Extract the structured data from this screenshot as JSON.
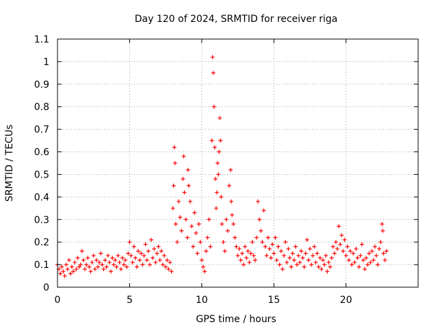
{
  "chart_data": {
    "type": "scatter",
    "title": "Day 120 of 2024, SRMTID for receiver riga",
    "xlabel": "GPS time / hours",
    "ylabel": "SRMTID / TECUs",
    "xlim": [
      0,
      25
    ],
    "ylim": [
      0,
      1.1
    ],
    "xticks": [
      0,
      5,
      10,
      15,
      20
    ],
    "xtick_labels": [
      "0",
      "5",
      "10",
      "15",
      "20"
    ],
    "yticks": [
      0,
      0.1,
      0.2,
      0.3,
      0.4,
      0.5,
      0.6,
      0.7,
      0.8,
      0.9,
      1.0,
      1.1
    ],
    "ytick_labels": [
      "0",
      "0.1",
      "0.2",
      "0.3",
      "0.4",
      "0.5",
      "0.6",
      "0.7",
      "0.8",
      "0.9",
      "1",
      "1.1"
    ],
    "grid": true,
    "marker": "+",
    "color": "#ff0000",
    "series": [
      {
        "name": "SRMTID",
        "points": [
          [
            0.0,
            0.1
          ],
          [
            0.1,
            0.08
          ],
          [
            0.2,
            0.06
          ],
          [
            0.3,
            0.09
          ],
          [
            0.4,
            0.07
          ],
          [
            0.5,
            0.05
          ],
          [
            0.6,
            0.1
          ],
          [
            0.7,
            0.08
          ],
          [
            0.8,
            0.12
          ],
          [
            0.9,
            0.06
          ],
          [
            1.0,
            0.09
          ],
          [
            1.1,
            0.07
          ],
          [
            1.2,
            0.11
          ],
          [
            1.3,
            0.08
          ],
          [
            1.4,
            0.13
          ],
          [
            1.5,
            0.09
          ],
          [
            1.6,
            0.1
          ],
          [
            1.7,
            0.16
          ],
          [
            1.8,
            0.12
          ],
          [
            1.9,
            0.08
          ],
          [
            2.0,
            0.1
          ],
          [
            2.1,
            0.13
          ],
          [
            2.2,
            0.09
          ],
          [
            2.3,
            0.07
          ],
          [
            2.4,
            0.11
          ],
          [
            2.5,
            0.14
          ],
          [
            2.6,
            0.08
          ],
          [
            2.7,
            0.12
          ],
          [
            2.8,
            0.09
          ],
          [
            2.9,
            0.11
          ],
          [
            3.0,
            0.15
          ],
          [
            3.1,
            0.1
          ],
          [
            3.2,
            0.08
          ],
          [
            3.3,
            0.12
          ],
          [
            3.4,
            0.09
          ],
          [
            3.5,
            0.14
          ],
          [
            3.6,
            0.11
          ],
          [
            3.7,
            0.07
          ],
          [
            3.8,
            0.13
          ],
          [
            3.9,
            0.1
          ],
          [
            4.0,
            0.12
          ],
          [
            4.1,
            0.09
          ],
          [
            4.2,
            0.14
          ],
          [
            4.3,
            0.11
          ],
          [
            4.4,
            0.08
          ],
          [
            4.5,
            0.13
          ],
          [
            4.6,
            0.1
          ],
          [
            4.7,
            0.12
          ],
          [
            4.8,
            0.09
          ],
          [
            4.9,
            0.15
          ],
          [
            5.0,
            0.2
          ],
          [
            5.1,
            0.14
          ],
          [
            5.2,
            0.11
          ],
          [
            5.3,
            0.18
          ],
          [
            5.4,
            0.13
          ],
          [
            5.5,
            0.09
          ],
          [
            5.6,
            0.16
          ],
          [
            5.7,
            0.12
          ],
          [
            5.8,
            0.15
          ],
          [
            5.9,
            0.1
          ],
          [
            6.0,
            0.14
          ],
          [
            6.1,
            0.19
          ],
          [
            6.2,
            0.12
          ],
          [
            6.3,
            0.16
          ],
          [
            6.4,
            0.1
          ],
          [
            6.5,
            0.21
          ],
          [
            6.6,
            0.13
          ],
          [
            6.7,
            0.17
          ],
          [
            6.8,
            0.11
          ],
          [
            6.9,
            0.15
          ],
          [
            7.0,
            0.18
          ],
          [
            7.1,
            0.12
          ],
          [
            7.2,
            0.16
          ],
          [
            7.3,
            0.1
          ],
          [
            7.4,
            0.14
          ],
          [
            7.5,
            0.09
          ],
          [
            7.6,
            0.12
          ],
          [
            7.7,
            0.08
          ],
          [
            7.8,
            0.11
          ],
          [
            7.9,
            0.07
          ],
          [
            8.0,
            0.35
          ],
          [
            8.05,
            0.45
          ],
          [
            8.1,
            0.62
          ],
          [
            8.15,
            0.55
          ],
          [
            8.2,
            0.28
          ],
          [
            8.3,
            0.2
          ],
          [
            8.4,
            0.38
          ],
          [
            8.5,
            0.31
          ],
          [
            8.6,
            0.25
          ],
          [
            8.7,
            0.48
          ],
          [
            8.75,
            0.58
          ],
          [
            8.8,
            0.42
          ],
          [
            8.9,
            0.3
          ],
          [
            9.0,
            0.22
          ],
          [
            9.05,
            0.52
          ],
          [
            9.1,
            0.45
          ],
          [
            9.2,
            0.38
          ],
          [
            9.3,
            0.27
          ],
          [
            9.4,
            0.18
          ],
          [
            9.5,
            0.33
          ],
          [
            9.6,
            0.24
          ],
          [
            9.7,
            0.15
          ],
          [
            9.8,
            0.28
          ],
          [
            9.9,
            0.2
          ],
          [
            10.0,
            0.12
          ],
          [
            10.1,
            0.09
          ],
          [
            10.2,
            0.07
          ],
          [
            10.3,
            0.16
          ],
          [
            10.4,
            0.22
          ],
          [
            10.5,
            0.3
          ],
          [
            10.6,
            0.18
          ],
          [
            10.7,
            0.65
          ],
          [
            10.75,
            1.02
          ],
          [
            10.8,
            0.95
          ],
          [
            10.85,
            0.8
          ],
          [
            10.9,
            0.62
          ],
          [
            10.95,
            0.48
          ],
          [
            11.0,
            0.35
          ],
          [
            11.05,
            0.42
          ],
          [
            11.1,
            0.55
          ],
          [
            11.15,
            0.5
          ],
          [
            11.2,
            0.6
          ],
          [
            11.25,
            0.75
          ],
          [
            11.3,
            0.65
          ],
          [
            11.35,
            0.4
          ],
          [
            11.4,
            0.28
          ],
          [
            11.5,
            0.2
          ],
          [
            11.6,
            0.16
          ],
          [
            11.7,
            0.3
          ],
          [
            11.8,
            0.25
          ],
          [
            11.9,
            0.45
          ],
          [
            12.0,
            0.52
          ],
          [
            12.05,
            0.38
          ],
          [
            12.1,
            0.32
          ],
          [
            12.2,
            0.28
          ],
          [
            12.3,
            0.22
          ],
          [
            12.4,
            0.18
          ],
          [
            12.5,
            0.14
          ],
          [
            12.6,
            0.17
          ],
          [
            12.7,
            0.12
          ],
          [
            12.8,
            0.15
          ],
          [
            12.9,
            0.1
          ],
          [
            13.0,
            0.18
          ],
          [
            13.1,
            0.13
          ],
          [
            13.2,
            0.16
          ],
          [
            13.3,
            0.11
          ],
          [
            13.4,
            0.15
          ],
          [
            13.5,
            0.2
          ],
          [
            13.6,
            0.14
          ],
          [
            13.7,
            0.12
          ],
          [
            13.8,
            0.22
          ],
          [
            13.9,
            0.38
          ],
          [
            14.0,
            0.3
          ],
          [
            14.1,
            0.25
          ],
          [
            14.2,
            0.2
          ],
          [
            14.3,
            0.34
          ],
          [
            14.4,
            0.18
          ],
          [
            14.5,
            0.14
          ],
          [
            14.6,
            0.22
          ],
          [
            14.7,
            0.17
          ],
          [
            14.8,
            0.13
          ],
          [
            14.9,
            0.19
          ],
          [
            15.0,
            0.15
          ],
          [
            15.1,
            0.22
          ],
          [
            15.2,
            0.12
          ],
          [
            15.3,
            0.18
          ],
          [
            15.4,
            0.1
          ],
          [
            15.5,
            0.16
          ],
          [
            15.6,
            0.08
          ],
          [
            15.7,
            0.14
          ],
          [
            15.8,
            0.2
          ],
          [
            15.9,
            0.11
          ],
          [
            16.0,
            0.17
          ],
          [
            16.1,
            0.13
          ],
          [
            16.2,
            0.09
          ],
          [
            16.3,
            0.15
          ],
          [
            16.4,
            0.12
          ],
          [
            16.5,
            0.18
          ],
          [
            16.6,
            0.1
          ],
          [
            16.7,
            0.14
          ],
          [
            16.8,
            0.11
          ],
          [
            16.9,
            0.16
          ],
          [
            17.0,
            0.13
          ],
          [
            17.1,
            0.09
          ],
          [
            17.2,
            0.15
          ],
          [
            17.3,
            0.21
          ],
          [
            17.4,
            0.12
          ],
          [
            17.5,
            0.17
          ],
          [
            17.6,
            0.1
          ],
          [
            17.7,
            0.14
          ],
          [
            17.8,
            0.18
          ],
          [
            17.9,
            0.11
          ],
          [
            18.0,
            0.15
          ],
          [
            18.1,
            0.09
          ],
          [
            18.2,
            0.13
          ],
          [
            18.3,
            0.08
          ],
          [
            18.4,
            0.12
          ],
          [
            18.5,
            0.1
          ],
          [
            18.6,
            0.14
          ],
          [
            18.7,
            0.07
          ],
          [
            18.8,
            0.11
          ],
          [
            18.9,
            0.09
          ],
          [
            19.0,
            0.13
          ],
          [
            19.1,
            0.18
          ],
          [
            19.2,
            0.15
          ],
          [
            19.3,
            0.2
          ],
          [
            19.4,
            0.17
          ],
          [
            19.5,
            0.27
          ],
          [
            19.6,
            0.19
          ],
          [
            19.7,
            0.23
          ],
          [
            19.8,
            0.16
          ],
          [
            19.9,
            0.21
          ],
          [
            20.0,
            0.14
          ],
          [
            20.1,
            0.18
          ],
          [
            20.2,
            0.12
          ],
          [
            20.3,
            0.16
          ],
          [
            20.4,
            0.1
          ],
          [
            20.5,
            0.15
          ],
          [
            20.6,
            0.11
          ],
          [
            20.7,
            0.17
          ],
          [
            20.8,
            0.13
          ],
          [
            20.9,
            0.09
          ],
          [
            21.0,
            0.14
          ],
          [
            21.1,
            0.19
          ],
          [
            21.2,
            0.12
          ],
          [
            21.3,
            0.08
          ],
          [
            21.4,
            0.13
          ],
          [
            21.5,
            0.1
          ],
          [
            21.6,
            0.15
          ],
          [
            21.7,
            0.11
          ],
          [
            21.8,
            0.16
          ],
          [
            21.9,
            0.12
          ],
          [
            22.0,
            0.18
          ],
          [
            22.1,
            0.14
          ],
          [
            22.2,
            0.1
          ],
          [
            22.3,
            0.17
          ],
          [
            22.4,
            0.2
          ],
          [
            22.5,
            0.28
          ],
          [
            22.55,
            0.25
          ],
          [
            22.6,
            0.15
          ],
          [
            22.7,
            0.12
          ],
          [
            22.8,
            0.16
          ]
        ]
      }
    ]
  }
}
